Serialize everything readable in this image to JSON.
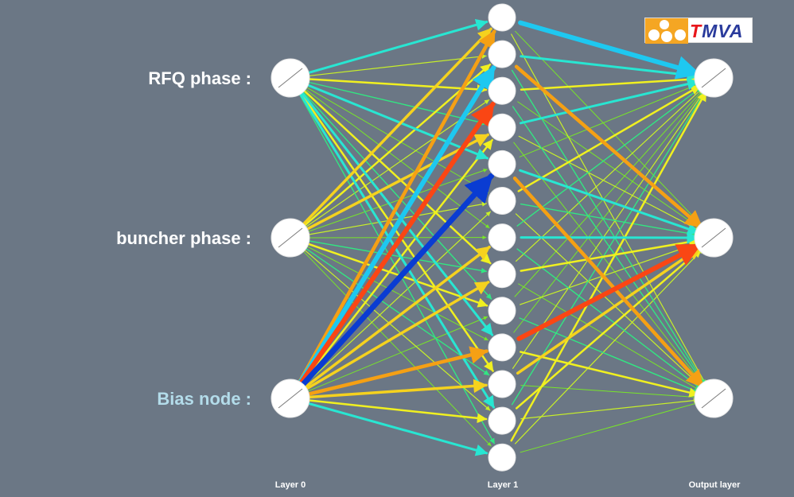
{
  "inputs": [
    {
      "label": "RFQ phase :",
      "is_bias": false
    },
    {
      "label": "buncher phase :",
      "is_bias": false
    },
    {
      "label": "Bias node :",
      "is_bias": true
    }
  ],
  "layers": {
    "input": {
      "label": "Layer 0",
      "nodes": 3
    },
    "hidden": {
      "label": "Layer 1",
      "nodes": 13
    },
    "output": {
      "label": "Output layer",
      "nodes": 3
    }
  },
  "logo": {
    "t": "T",
    "rest": "MVA"
  },
  "colors": {
    "background": "#6b7785",
    "node_fill": "#ffffff",
    "label_text": "#ffffff",
    "bias_label_text": "#b3dcea",
    "logo_red": "#e8161b",
    "logo_blue": "#2a3b9c",
    "logo_orange": "#f5a623",
    "weight_palette": [
      "#0a3cd2",
      "#1ec8f0",
      "#28e6d2",
      "#32e682",
      "#78e628",
      "#c8f028",
      "#f0f020",
      "#f5d21e",
      "#f5a014",
      "#fa4614"
    ]
  },
  "connections_in_hidden": [
    [
      [
        0,
        2
      ],
      [
        1,
        7
      ],
      [
        2,
        8
      ]
    ],
    [
      [
        0,
        5
      ],
      [
        1,
        6
      ],
      [
        2,
        1
      ]
    ],
    [
      [
        0,
        6
      ],
      [
        1,
        5
      ],
      [
        2,
        9
      ]
    ],
    [
      [
        0,
        3
      ],
      [
        1,
        7
      ],
      [
        2,
        6
      ]
    ],
    [
      [
        0,
        2
      ],
      [
        1,
        4
      ],
      [
        2,
        0
      ]
    ],
    [
      [
        0,
        4
      ],
      [
        1,
        5
      ],
      [
        2,
        5
      ]
    ],
    [
      [
        0,
        4
      ],
      [
        1,
        4
      ],
      [
        2,
        7
      ]
    ],
    [
      [
        0,
        6
      ],
      [
        1,
        3
      ],
      [
        2,
        7
      ]
    ],
    [
      [
        0,
        3
      ],
      [
        1,
        6
      ],
      [
        2,
        4
      ]
    ],
    [
      [
        0,
        2
      ],
      [
        1,
        4
      ],
      [
        2,
        8
      ]
    ],
    [
      [
        0,
        6
      ],
      [
        1,
        3
      ],
      [
        2,
        7
      ]
    ],
    [
      [
        0,
        2
      ],
      [
        1,
        5
      ],
      [
        2,
        6
      ]
    ],
    [
      [
        0,
        3
      ],
      [
        1,
        4
      ],
      [
        2,
        2
      ]
    ]
  ],
  "connections_hidden_out": [
    [
      [
        0,
        1
      ],
      [
        1,
        4
      ],
      [
        2,
        5
      ]
    ],
    [
      [
        0,
        2
      ],
      [
        1,
        8
      ],
      [
        2,
        3
      ]
    ],
    [
      [
        0,
        6
      ],
      [
        1,
        4
      ],
      [
        2,
        3
      ]
    ],
    [
      [
        0,
        2
      ],
      [
        1,
        5
      ],
      [
        2,
        4
      ]
    ],
    [
      [
        0,
        4
      ],
      [
        1,
        2
      ],
      [
        2,
        8
      ]
    ],
    [
      [
        0,
        6
      ],
      [
        1,
        3
      ],
      [
        2,
        5
      ]
    ],
    [
      [
        0,
        3
      ],
      [
        1,
        2
      ],
      [
        2,
        3
      ]
    ],
    [
      [
        0,
        5
      ],
      [
        1,
        6
      ],
      [
        2,
        4
      ]
    ],
    [
      [
        0,
        4
      ],
      [
        1,
        5
      ],
      [
        2,
        3
      ]
    ],
    [
      [
        0,
        4
      ],
      [
        1,
        9
      ],
      [
        2,
        6
      ]
    ],
    [
      [
        0,
        5
      ],
      [
        1,
        7
      ],
      [
        2,
        4
      ]
    ],
    [
      [
        0,
        3
      ],
      [
        1,
        6
      ],
      [
        2,
        5
      ]
    ],
    [
      [
        0,
        6
      ],
      [
        1,
        5
      ],
      [
        2,
        4
      ]
    ]
  ]
}
